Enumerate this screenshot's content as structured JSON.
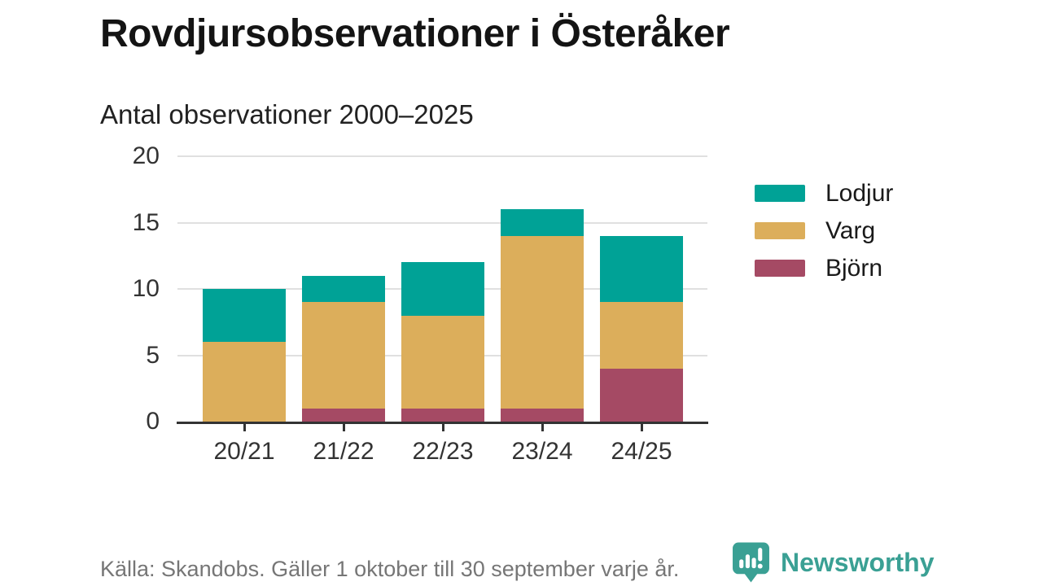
{
  "header": {
    "title": "Rovdjursobservationer i Österåker",
    "subtitle": "Antal observationer 2000–2025"
  },
  "chart_data": {
    "type": "bar",
    "stacked": true,
    "title": "Rovdjursobservationer i Österåker",
    "subtitle": "Antal observationer 2000–2025",
    "categories": [
      "20/21",
      "21/22",
      "22/23",
      "23/24",
      "24/25"
    ],
    "series": [
      {
        "name": "Lodjur",
        "color": "#00a296",
        "values": [
          4,
          2,
          4,
          2,
          5
        ]
      },
      {
        "name": "Varg",
        "color": "#dcae5b",
        "values": [
          6,
          8,
          7,
          13,
          5
        ]
      },
      {
        "name": "Björn",
        "color": "#a54a64",
        "values": [
          0,
          1,
          1,
          1,
          4
        ]
      }
    ],
    "stack_order_bottom_to_top": [
      "Björn",
      "Varg",
      "Lodjur"
    ],
    "totals": [
      10,
      11,
      12,
      16,
      14
    ],
    "y_ticks": [
      0,
      5,
      10,
      15,
      20
    ],
    "ylim": [
      0,
      20
    ],
    "grid": "horizontal",
    "legend_position": "right",
    "colors": {
      "grid": "#e0e0e0",
      "axis": "#333333",
      "text": "#333333"
    }
  },
  "footer": {
    "source": "Källa: Skandobs. Gäller 1 oktober till 30 september varje år.",
    "brand": "Newsworthy"
  }
}
